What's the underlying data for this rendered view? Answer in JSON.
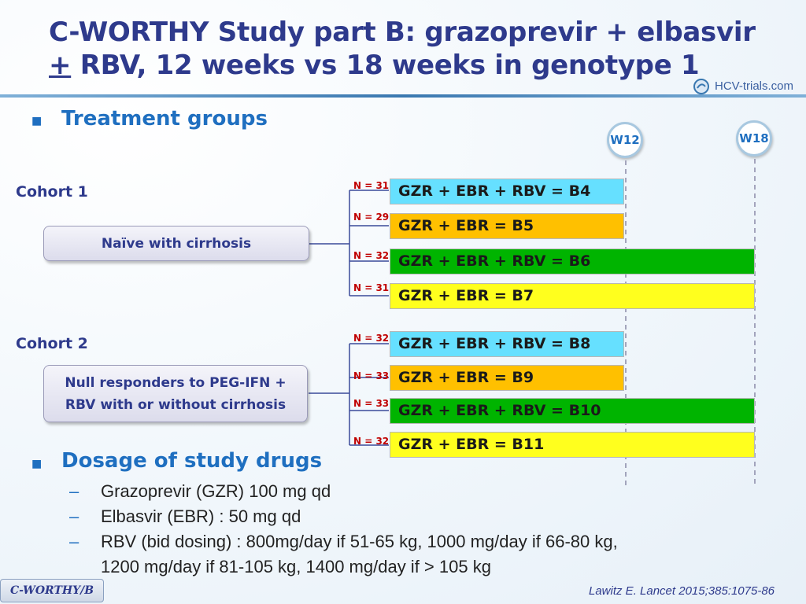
{
  "title": {
    "line1": "C-WORTHY Study part B: grazoprevir + elbasvir",
    "pm": "+",
    "line2_rest": " RBV, 12 weeks vs 18 weeks in genotype 1"
  },
  "logo": {
    "text": "HCV-trials.com"
  },
  "treatment": {
    "heading": "Treatment groups",
    "weeks": [
      "W12",
      "W18"
    ],
    "cohorts": [
      {
        "label": "Cohort 1",
        "population": "Naïve with cirrhosis",
        "arms": [
          {
            "n": "N = 31",
            "label": "GZR + EBR + RBV = B4",
            "color": "#66e0ff",
            "duration": "W12"
          },
          {
            "n": "N = 29",
            "label": "GZR + EBR = B5",
            "color": "#ffc000",
            "duration": "W12"
          },
          {
            "n": "N = 32",
            "label": "GZR + EBR + RBV = B6",
            "color": "#00b400",
            "duration": "W18"
          },
          {
            "n": "N = 31",
            "label": "GZR + EBR = B7",
            "color": "#ffff1e",
            "duration": "W18"
          }
        ]
      },
      {
        "label": "Cohort 2",
        "population": "Null responders to PEG-IFN + RBV with or without cirrhosis",
        "arms": [
          {
            "n": "N = 32",
            "label": "GZR + EBR + RBV = B8",
            "color": "#66e0ff",
            "duration": "W12"
          },
          {
            "n": "N = 33",
            "label": "GZR + EBR = B9",
            "color": "#ffc000",
            "duration": "W12"
          },
          {
            "n": "N = 33",
            "label": "GZR + EBR + RBV = B10",
            "color": "#00b400",
            "duration": "W18"
          },
          {
            "n": "N = 32",
            "label": "GZR + EBR = B11",
            "color": "#ffff1e",
            "duration": "W18"
          }
        ]
      }
    ]
  },
  "dosage": {
    "heading": "Dosage of study drugs",
    "items": [
      "Grazoprevir (GZR) 100 mg qd",
      "Elbasvir (EBR) : 50 mg qd",
      "RBV (bid dosing) : 800mg/day if 51-65 kg, 1000 mg/day if 66-80 kg,"
    ],
    "continuation": "1200 mg/day if 81-105 kg, 1400 mg/day if > 105 kg",
    "dash": "–"
  },
  "footer": {
    "tag": "C-WORTHY/B",
    "reference": "Lawitz E. Lancet 2015;385:1075-86"
  },
  "colors": {
    "accent": "#1f6fc0",
    "title": "#2e3a8c",
    "n_label": "#c00000"
  }
}
